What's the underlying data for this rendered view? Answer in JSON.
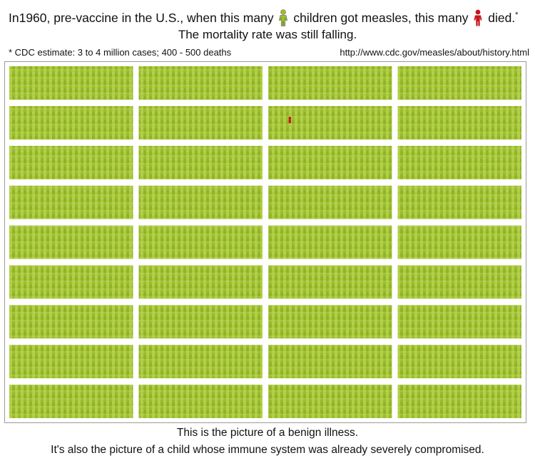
{
  "header": {
    "title_before": "In1960, pre-vaccine in the U.S., when this many",
    "title_middle": "children got measles, this many",
    "title_after": "died.",
    "title_footnote_mark": "*",
    "subtitle": "The mortality rate was still falling.",
    "source_note": "* CDC estimate: 3 to 4 million cases; 400 - 500 deaths",
    "source_url": "http://www.cdc.gov/measles/about/history.html"
  },
  "icons": {
    "case_icon": "child-figure-icon",
    "case_color": "#9cc31c",
    "case_outline": "#a9a9a9",
    "death_icon": "child-figure-icon",
    "death_color": "#c8151b"
  },
  "figure_grid": {
    "block_columns": 4,
    "block_rows": 9,
    "highlight": {
      "block_column": 3,
      "block_row": 2,
      "count": 1
    }
  },
  "footer": {
    "caption_1": "This is the picture of a benign illness.",
    "caption_2": "It's also the picture of a child whose immune system was already severely compromised."
  }
}
